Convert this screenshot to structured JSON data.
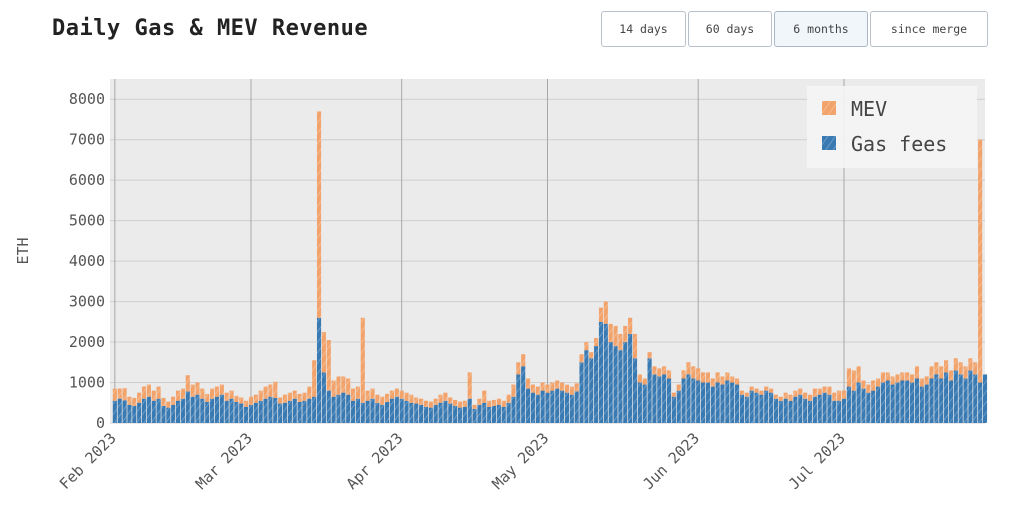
{
  "title": "Daily Gas & MEV Revenue",
  "range_buttons": [
    {
      "label": "14 days",
      "active": false
    },
    {
      "label": "60 days",
      "active": false
    },
    {
      "label": "6 months",
      "active": true
    },
    {
      "label": "since merge",
      "active": false
    }
  ],
  "colors": {
    "gas": "#3a7ab3",
    "mev": "#f2a36b",
    "plot_bg": "#ebebeb",
    "grid": "#cfcfcf"
  },
  "chart_data": {
    "type": "bar",
    "stacked": true,
    "ylabel": "ETH",
    "ylim": [
      0,
      8500
    ],
    "y_ticks": [
      0,
      1000,
      2000,
      3000,
      4000,
      5000,
      6000,
      7000,
      8000
    ],
    "x_range": [
      "2023-01-31",
      "2023-07-30"
    ],
    "x_ticks": [
      {
        "date": "2023-02-01",
        "label": "Feb 2023"
      },
      {
        "date": "2023-03-01",
        "label": "Mar 2023"
      },
      {
        "date": "2023-04-01",
        "label": "Apr 2023"
      },
      {
        "date": "2023-05-01",
        "label": "May 2023"
      },
      {
        "date": "2023-06-01",
        "label": "Jun 2023"
      },
      {
        "date": "2023-07-01",
        "label": "Jul 2023"
      }
    ],
    "legend": {
      "position": "top-right",
      "entries": [
        "MEV",
        "Gas fees"
      ]
    },
    "grid": true,
    "start_date": "2023-02-01",
    "series": [
      {
        "name": "Gas fees",
        "values": [
          550,
          600,
          560,
          450,
          420,
          500,
          600,
          650,
          550,
          600,
          420,
          380,
          450,
          550,
          600,
          780,
          650,
          700,
          600,
          520,
          600,
          650,
          700,
          550,
          600,
          520,
          480,
          400,
          450,
          500,
          550,
          600,
          650,
          620,
          480,
          500,
          550,
          600,
          520,
          550,
          600,
          650,
          2600,
          1250,
          800,
          650,
          700,
          750,
          700,
          550,
          600,
          500,
          550,
          600,
          500,
          450,
          520,
          600,
          650,
          600,
          550,
          500,
          480,
          450,
          400,
          380,
          450,
          500,
          550,
          480,
          420,
          380,
          400,
          600,
          350,
          450,
          500,
          400,
          420,
          450,
          400,
          500,
          650,
          1200,
          1400,
          850,
          750,
          700,
          800,
          750,
          800,
          850,
          800,
          750,
          700,
          780,
          1500,
          1800,
          1600,
          1900,
          2500,
          2450,
          2000,
          1900,
          1800,
          2000,
          2200,
          1600,
          1000,
          950,
          1600,
          1200,
          1150,
          1200,
          1100,
          650,
          800,
          1100,
          1200,
          1100,
          1050,
          1000,
          1000,
          900,
          1000,
          950,
          1050,
          1000,
          950,
          700,
          650,
          800,
          750,
          700,
          800,
          750,
          600,
          550,
          600,
          550,
          650,
          700,
          600,
          550,
          650,
          700,
          750,
          700,
          550,
          550,
          600,
          900,
          800,
          1000,
          850,
          750,
          800,
          900,
          1000,
          1050,
          950,
          1000,
          1050,
          1050,
          1000,
          1100,
          900,
          950,
          1100,
          1200,
          1100,
          1250,
          1050,
          1300,
          1200,
          1100,
          1300,
          1200,
          1000,
          1200
        ],
        "color": "#3a7ab3"
      },
      {
        "name": "MEV",
        "values": [
          300,
          250,
          300,
          200,
          200,
          250,
          300,
          300,
          250,
          300,
          200,
          150,
          200,
          250,
          250,
          400,
          300,
          300,
          250,
          200,
          250,
          250,
          250,
          200,
          200,
          150,
          150,
          150,
          200,
          200,
          250,
          300,
          300,
          400,
          150,
          200,
          200,
          200,
          200,
          200,
          300,
          900,
          5100,
          1000,
          1250,
          400,
          450,
          400,
          400,
          300,
          300,
          2100,
          250,
          250,
          200,
          200,
          200,
          200,
          200,
          200,
          200,
          200,
          150,
          150,
          150,
          150,
          150,
          200,
          200,
          150,
          150,
          150,
          150,
          650,
          100,
          150,
          300,
          150,
          150,
          150,
          150,
          200,
          300,
          300,
          300,
          250,
          200,
          200,
          200,
          200,
          200,
          200,
          200,
          200,
          200,
          200,
          200,
          200,
          150,
          200,
          350,
          550,
          450,
          500,
          400,
          400,
          400,
          600,
          200,
          150,
          150,
          200,
          200,
          200,
          200,
          100,
          150,
          200,
          300,
          300,
          300,
          250,
          250,
          200,
          250,
          200,
          200,
          150,
          150,
          100,
          100,
          100,
          100,
          100,
          100,
          100,
          100,
          100,
          150,
          150,
          150,
          150,
          150,
          150,
          200,
          150,
          150,
          200,
          200,
          250,
          200,
          450,
          500,
          400,
          200,
          200,
          250,
          200,
          250,
          200,
          200,
          200,
          200,
          200,
          200,
          300,
          200,
          200,
          300,
          300,
          300,
          300,
          250,
          300,
          300,
          300,
          300,
          300,
          6000
        ],
        "color": "#f2a36b"
      }
    ]
  }
}
